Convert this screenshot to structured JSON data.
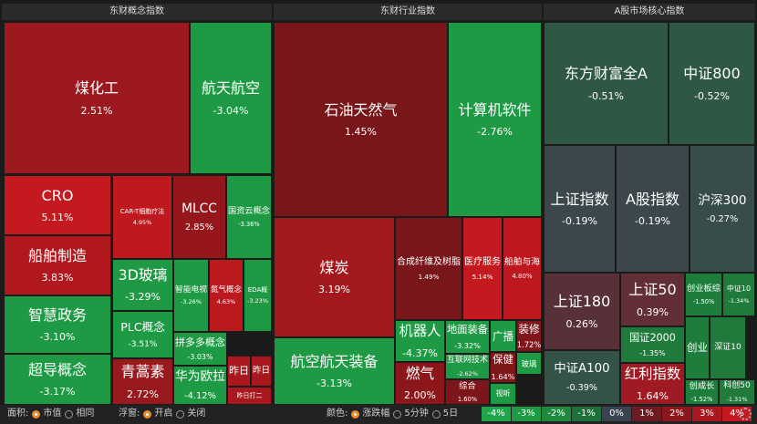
{
  "panels": [
    {
      "title": "东财概念指数",
      "tiles": [
        {
          "name": "煤化工",
          "value": "2.51%",
          "color": "#9c1a1f"
        },
        {
          "name": "航天航空",
          "value": "-3.04%",
          "color": "#1f9a44"
        },
        {
          "name": "CRO",
          "value": "5.11%",
          "color": "#c3191f"
        },
        {
          "name": "船舶制造",
          "value": "3.83%",
          "color": "#b1181d"
        },
        {
          "name": "智慧政务",
          "value": "-3.10%",
          "color": "#1f9a44"
        },
        {
          "name": "超导概念",
          "value": "-3.17%",
          "color": "#1f9a44"
        },
        {
          "name": "CAR-T细胞疗法",
          "value": "4.95%",
          "color": "#bf191f"
        },
        {
          "name": "MLCC",
          "value": "2.85%",
          "color": "#95171b"
        },
        {
          "name": "国资云概念",
          "value": "-3.36%",
          "color": "#1f9a44"
        },
        {
          "name": "3D玻璃",
          "value": "-3.29%",
          "color": "#1f9a44"
        },
        {
          "name": "PLC概念",
          "value": "-3.51%",
          "color": "#1f9a44"
        },
        {
          "name": "青蒿素",
          "value": "2.72%",
          "color": "#981a1e"
        },
        {
          "name": "智能电视",
          "value": "-3.26%",
          "color": "#1f9a44"
        },
        {
          "name": "氮气概念",
          "value": "4.63%",
          "color": "#bc191f"
        },
        {
          "name": "EDA概",
          "value": "-3.23%",
          "color": "#1f9a44"
        },
        {
          "name": "拼多多概念",
          "value": "-3.03%",
          "color": "#1f9a44"
        },
        {
          "name": "华为欧拉",
          "value": "-4.12%",
          "color": "#1f9a44"
        },
        {
          "name": "昨日",
          "color": "#a8181e"
        },
        {
          "name": "昨日",
          "color": "#a8181e"
        },
        {
          "name": "昨日打二",
          "color": "#a8181e"
        }
      ]
    },
    {
      "title": "东财行业指数",
      "tiles": [
        {
          "name": "石油天然气",
          "value": "1.45%",
          "color": "#78161a"
        },
        {
          "name": "计算机软件",
          "value": "-2.76%",
          "color": "#1f9a44"
        },
        {
          "name": "煤炭",
          "value": "3.19%",
          "color": "#a3181d"
        },
        {
          "name": "航空航天装备",
          "value": "-3.13%",
          "color": "#1f9a44"
        },
        {
          "name": "合成纤维及树脂",
          "value": "1.49%",
          "color": "#78161a"
        },
        {
          "name": "医疗服务",
          "value": "5.14%",
          "color": "#c3191f"
        },
        {
          "name": "船舶与海",
          "value": "4.80%",
          "color": "#bd191f"
        },
        {
          "name": "机器人",
          "value": "-4.37%",
          "color": "#1f9a44"
        },
        {
          "name": "燃气",
          "value": "2.00%",
          "color": "#8d161b"
        },
        {
          "name": "地面装备",
          "value": "-3.32%",
          "color": "#1f9a44"
        },
        {
          "name": "互联网技术",
          "value": "-2.62%",
          "color": "#1f9a44"
        },
        {
          "name": "综合",
          "value": "1.60%",
          "color": "#7c161a"
        },
        {
          "name": "广播",
          "color": "#1f9a44"
        },
        {
          "name": "装修",
          "value": "1.72%",
          "color": "#80161a"
        },
        {
          "name": "保健",
          "value": "1.64%",
          "color": "#7e161a"
        },
        {
          "name": "玻璃",
          "color": "#1f9a44"
        },
        {
          "name": "视听",
          "color": "#1f9a44"
        }
      ]
    },
    {
      "title": "A股市场核心指数",
      "tiles": [
        {
          "name": "东方财富全A",
          "value": "-0.51%",
          "color": "#2f5746"
        },
        {
          "name": "中证800",
          "value": "-0.52%",
          "color": "#2f5746"
        },
        {
          "name": "上证指数",
          "value": "-0.19%",
          "color": "#3b474b"
        },
        {
          "name": "A股指数",
          "value": "-0.19%",
          "color": "#3b474b"
        },
        {
          "name": "沪深300",
          "value": "-0.27%",
          "color": "#384c49"
        },
        {
          "name": "上证180",
          "value": "0.26%",
          "color": "#583037"
        },
        {
          "name": "中证A100",
          "value": "-0.39%",
          "color": "#335346"
        },
        {
          "name": "上证50",
          "value": "0.39%",
          "color": "#612f35"
        },
        {
          "name": "国证2000",
          "value": "-1.35%",
          "color": "#1f7a3b"
        },
        {
          "name": "红利指数",
          "value": "1.64%",
          "color": "#a01a24"
        },
        {
          "name": "创业板综",
          "value": "-1.50%",
          "color": "#1d7e3c"
        },
        {
          "name": "中证10",
          "value": "-1.34%",
          "color": "#1f7a3b"
        },
        {
          "name": "创业",
          "color": "#1d7e3c"
        },
        {
          "name": "深证10",
          "color": "#1f7a3b"
        },
        {
          "name": "创成长",
          "value": "-1.52%",
          "color": "#1d7e3c"
        },
        {
          "name": "科创50",
          "value": "-1.31%",
          "color": "#1f7a3b"
        }
      ]
    }
  ],
  "toolbar": {
    "area_label": "面积:",
    "area_options": [
      "市值",
      "相同"
    ],
    "float_label": "浮窗:",
    "float_options": [
      "开启",
      "关闭"
    ],
    "color_label": "颜色:",
    "color_options": [
      "涨跌幅",
      "5分钟",
      "5日"
    ],
    "legend": [
      {
        "label": "-4%",
        "color": "#1fa64a"
      },
      {
        "label": "-3%",
        "color": "#1f9a44"
      },
      {
        "label": "-2%",
        "color": "#1e8a3e"
      },
      {
        "label": "-1%",
        "color": "#1f6f3a"
      },
      {
        "label": "0%",
        "color": "#3a4150"
      },
      {
        "label": "1%",
        "color": "#6e1a22"
      },
      {
        "label": "2%",
        "color": "#8d161b"
      },
      {
        "label": "3%",
        "color": "#a8181e"
      },
      {
        "label": "4%",
        "color": "#c3191f"
      }
    ]
  }
}
